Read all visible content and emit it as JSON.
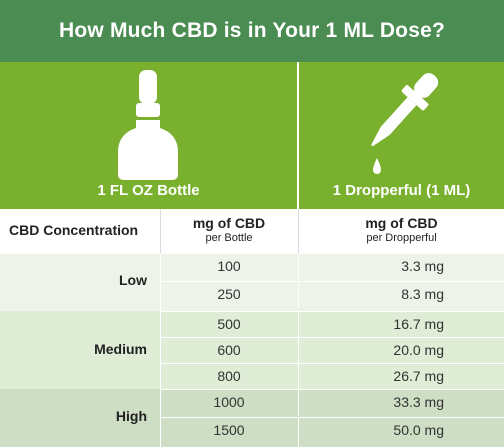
{
  "title": "How Much CBD is in Your 1 ML Dose?",
  "panels": {
    "bottle_caption": "1 FL OZ Bottle",
    "dropper_caption": "1 Dropperful (1 ML)"
  },
  "header": {
    "concentration": "CBD Concentration",
    "bottle_main": "mg of CBD",
    "bottle_sub": "per Bottle",
    "drop_main": "mg of CBD",
    "drop_sub": "per Dropperful"
  },
  "groups": [
    {
      "label": "Low",
      "rows": [
        {
          "bottle": "100",
          "drop": "3.3 mg"
        },
        {
          "bottle": "250",
          "drop": "8.3 mg"
        }
      ]
    },
    {
      "label": "Medium",
      "rows": [
        {
          "bottle": "500",
          "drop": "16.7 mg"
        },
        {
          "bottle": "600",
          "drop": "20.0 mg"
        },
        {
          "bottle": "800",
          "drop": "26.7 mg"
        }
      ]
    },
    {
      "label": "High",
      "rows": [
        {
          "bottle": "1000",
          "drop": "33.3 mg"
        },
        {
          "bottle": "1500",
          "drop": "50.0 mg"
        }
      ]
    }
  ],
  "colors": {
    "title_bg": "#4a8c52",
    "panel_bg": "#79b12f",
    "low_bg": "#eef3ea",
    "medium_bg": "#dfecd6",
    "high_bg": "#cddec4"
  },
  "icons": {
    "bottle": "bottle-icon",
    "dropper": "dropper-icon"
  }
}
